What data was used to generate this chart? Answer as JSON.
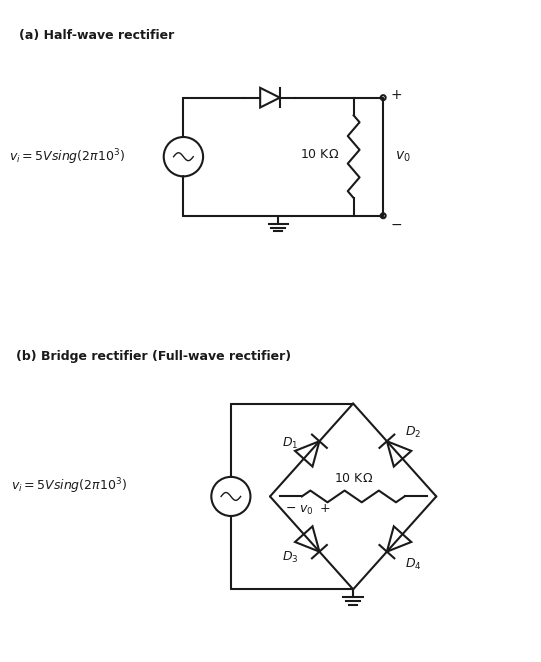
{
  "title_a": "(a) Half-wave rectifier",
  "title_b": "(b) Bridge rectifier (Full-wave rectifier)",
  "source_label": "v_i = 5Vsing(2\\pi10^3)",
  "resistor_label": "10 K\\Omega",
  "vo_label": "v_0",
  "bg_color": "#ffffff",
  "line_color": "#1a1a1a",
  "text_color": "#1a1a1a",
  "D1": "D_1",
  "D2": "D_2",
  "D3": "D_3",
  "D4": "D_4"
}
